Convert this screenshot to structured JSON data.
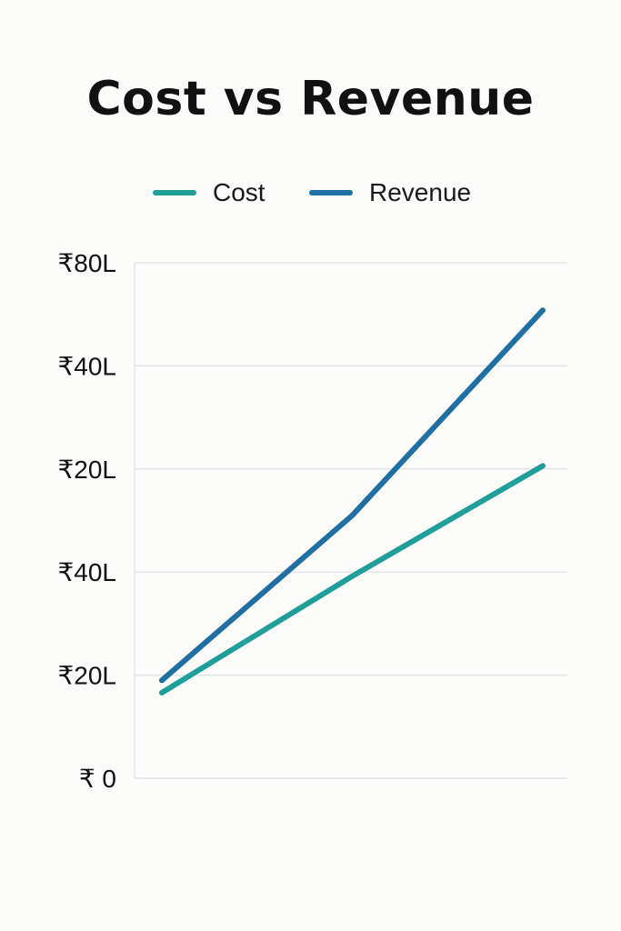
{
  "chart_data": {
    "type": "line",
    "title": "Cost vs Revenue",
    "x": [
      0,
      1,
      2
    ],
    "xlabel": "",
    "ylabel": "",
    "y_tick_labels": [
      "₹ 0",
      "₹20L",
      "₹40L",
      "₹20L",
      "₹40L",
      "₹80L"
    ],
    "ylim": [
      0,
      5
    ],
    "grid": true,
    "legend_position": "top-center",
    "series": [
      {
        "name": "Cost",
        "color": "#1f9e9a",
        "values": [
          0.83,
          1.96,
          3.03
        ]
      },
      {
        "name": "Revenue",
        "color": "#1f6fa3",
        "values": [
          0.95,
          2.55,
          4.54
        ]
      }
    ]
  }
}
